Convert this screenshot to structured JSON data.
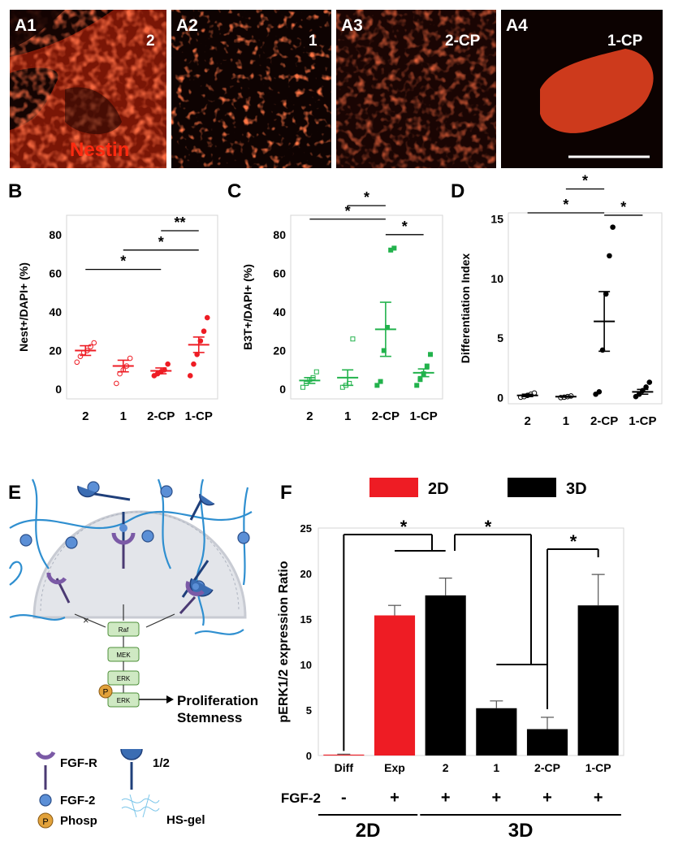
{
  "micrographs": [
    {
      "label": "A1",
      "condition": "2"
    },
    {
      "label": "A2",
      "condition": "1"
    },
    {
      "label": "A3",
      "condition": "2-CP"
    },
    {
      "label": "A4",
      "condition": "1-CP"
    }
  ],
  "stain_label": "Nestin",
  "colors": {
    "red": "#ee1c24",
    "green": "#22b24c",
    "black": "#000000",
    "stain": "#ff2a10",
    "receptor": "#7b5aa6",
    "hs_chain": "#2f8fd0",
    "ligand": "#3b6db3",
    "fgf2": "#5b8fd6",
    "phosp": "#e2a23b",
    "cell": "#e3e5ea",
    "kinase": "#cfe9c3"
  },
  "chart_data": [
    {
      "panel": "B",
      "type": "scatter",
      "ylabel": "Nest+/DAPI+ (%)",
      "categories": [
        "2",
        "1",
        "2-CP",
        "1-CP"
      ],
      "ylim": [
        -5,
        90
      ],
      "yticks": [
        0,
        20,
        40,
        60,
        80
      ],
      "series": [
        {
          "category": "2",
          "mean": 20,
          "sem": 2.5,
          "points": [
            14,
            17,
            19,
            20,
            22,
            24
          ]
        },
        {
          "category": "1",
          "mean": 12,
          "sem": 3,
          "points": [
            3,
            8,
            10,
            12,
            16
          ]
        },
        {
          "category": "2-CP",
          "mean": 9.5,
          "sem": 1.5,
          "points": [
            7,
            8,
            9,
            10,
            13
          ]
        },
        {
          "category": "1-CP",
          "mean": 23,
          "sem": 4,
          "points": [
            7,
            13,
            18,
            25,
            30,
            37
          ]
        }
      ],
      "brackets": [
        {
          "from": 0,
          "to": 2,
          "y": 62,
          "label": "*"
        },
        {
          "from": 1,
          "to": 3,
          "y": 72,
          "label": "*"
        },
        {
          "from": 2,
          "to": 3,
          "y": 82,
          "label": "**"
        }
      ]
    },
    {
      "panel": "C",
      "type": "scatter",
      "ylabel": "B3T+/DAPI+ (%)",
      "categories": [
        "2",
        "1",
        "2-CP",
        "1-CP"
      ],
      "ylim": [
        -5,
        90
      ],
      "yticks": [
        0,
        20,
        40,
        60,
        80
      ],
      "series": [
        {
          "category": "2",
          "mean": 4.5,
          "sem": 1.5,
          "points": [
            1,
            3,
            5,
            6,
            9
          ]
        },
        {
          "category": "1",
          "mean": 6,
          "sem": 4,
          "points": [
            1,
            2,
            3,
            26
          ]
        },
        {
          "category": "2-CP",
          "mean": 31,
          "sem": 14,
          "points": [
            2,
            4,
            20,
            32,
            72,
            73
          ]
        },
        {
          "category": "1-CP",
          "mean": 8.5,
          "sem": 2,
          "points": [
            2,
            5,
            8,
            12,
            18
          ]
        }
      ],
      "brackets": [
        {
          "from": 0,
          "to": 2,
          "y": 88,
          "label": "*"
        },
        {
          "from": 1,
          "to": 2,
          "y": 95,
          "label": "*"
        },
        {
          "from": 2,
          "to": 3,
          "y": 80,
          "label": "*"
        }
      ]
    },
    {
      "panel": "D",
      "type": "scatter",
      "ylabel": "Differentiation Index",
      "categories": [
        "2",
        "1",
        "2-CP",
        "1-CP"
      ],
      "ylim": [
        -0.5,
        15.5
      ],
      "yticks": [
        0,
        5,
        10,
        15
      ],
      "series": [
        {
          "category": "2",
          "mean": 0.2,
          "sem": 0.1,
          "points": [
            0.05,
            0.1,
            0.2,
            0.3,
            0.4
          ]
        },
        {
          "category": "1",
          "mean": 0.1,
          "sem": 0.05,
          "points": [
            0.02,
            0.05,
            0.1,
            0.15
          ]
        },
        {
          "category": "2-CP",
          "mean": 6.4,
          "sem": 2.5,
          "points": [
            0.3,
            0.5,
            4,
            8.7,
            11.9,
            14.3
          ]
        },
        {
          "category": "1-CP",
          "mean": 0.5,
          "sem": 0.2,
          "points": [
            0.1,
            0.3,
            0.6,
            0.9,
            1.3
          ]
        }
      ],
      "brackets": [
        {
          "from": 0,
          "to": 2,
          "y": 15.5,
          "label": "*"
        },
        {
          "from": 1,
          "to": 2,
          "y": 17.5,
          "label": "*"
        },
        {
          "from": 2,
          "to": 3,
          "y": 15.3,
          "label": "*"
        }
      ]
    },
    {
      "panel": "F",
      "type": "bar",
      "ylabel": "pERK1/2 expression Ratio",
      "categories": [
        "Diff",
        "Exp",
        "2",
        "1",
        "2-CP",
        "1-CP"
      ],
      "values": [
        0.1,
        15.4,
        17.6,
        5.2,
        2.9,
        16.5
      ],
      "errors": [
        0.05,
        1.1,
        1.9,
        0.8,
        1.3,
        3.4
      ],
      "bar_groups": [
        "2D",
        "2D",
        "3D",
        "3D",
        "3D",
        "3D"
      ],
      "ylim": [
        0,
        25
      ],
      "yticks": [
        0,
        5,
        10,
        15,
        20,
        25
      ],
      "legend": [
        {
          "name": "2D",
          "color_key": "red"
        },
        {
          "name": "3D",
          "color_key": "black"
        }
      ],
      "legend_position": "top",
      "fgf_label": "FGF-2",
      "fgf_values": [
        "-",
        "+",
        "+",
        "+",
        "+",
        "+"
      ],
      "groups": [
        {
          "label": "2D",
          "from": 0,
          "to": 1
        },
        {
          "label": "3D",
          "from": 2,
          "to": 5
        }
      ],
      "significance": [
        "*",
        "*",
        "*"
      ]
    }
  ],
  "diagram": {
    "pathway": [
      "Raf",
      "MEK",
      "ERK",
      "ERK"
    ],
    "phospho_symbol": "P",
    "blocked_symbol": "×",
    "outcome": [
      "Proliferation",
      "Stemness"
    ],
    "legend": [
      {
        "icon": "fgf-receptor-icon",
        "label": "FGF-R"
      },
      {
        "icon": "ligand-icon",
        "label": "1/2"
      },
      {
        "icon": "fgf2-icon",
        "label": "FGF-2"
      },
      {
        "icon": "hs-gel-icon",
        "label": "HS-gel"
      },
      {
        "icon": "phospho-icon",
        "label": "Phosp"
      }
    ]
  },
  "panel_letters": [
    "B",
    "C",
    "D",
    "E",
    "F"
  ]
}
